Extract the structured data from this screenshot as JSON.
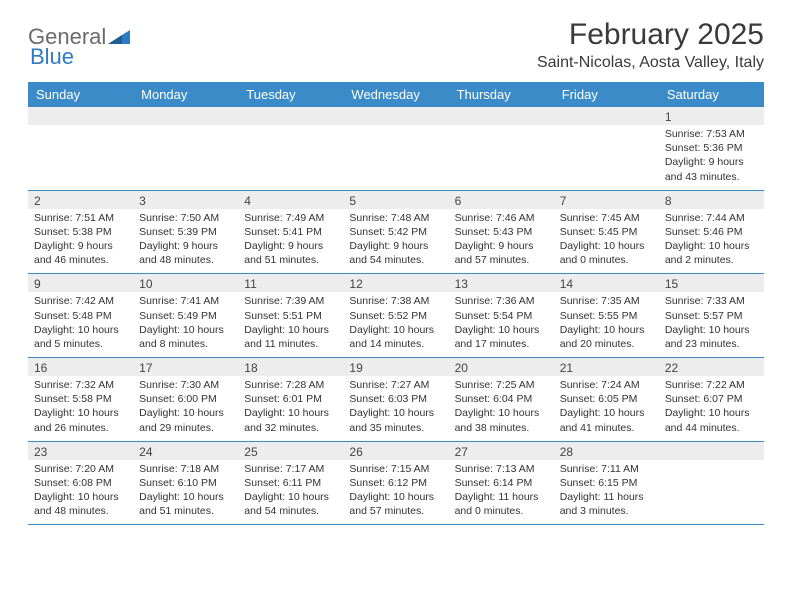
{
  "brand": {
    "part1": "General",
    "part2": "Blue"
  },
  "title": "February 2025",
  "location": "Saint-Nicolas, Aosta Valley, Italy",
  "colors": {
    "header_bar": "#3b8bc8",
    "daynum_bg": "#ededed",
    "text": "#333333",
    "logo_blue": "#2f7bbf",
    "logo_gray": "#6b6b6b"
  },
  "day_names": [
    "Sunday",
    "Monday",
    "Tuesday",
    "Wednesday",
    "Thursday",
    "Friday",
    "Saturday"
  ],
  "weeks": [
    [
      {
        "n": "",
        "sunrise": "",
        "sunset": "",
        "day": ""
      },
      {
        "n": "",
        "sunrise": "",
        "sunset": "",
        "day": ""
      },
      {
        "n": "",
        "sunrise": "",
        "sunset": "",
        "day": ""
      },
      {
        "n": "",
        "sunrise": "",
        "sunset": "",
        "day": ""
      },
      {
        "n": "",
        "sunrise": "",
        "sunset": "",
        "day": ""
      },
      {
        "n": "",
        "sunrise": "",
        "sunset": "",
        "day": ""
      },
      {
        "n": "1",
        "sunrise": "Sunrise: 7:53 AM",
        "sunset": "Sunset: 5:36 PM",
        "day": "Daylight: 9 hours and 43 minutes."
      }
    ],
    [
      {
        "n": "2",
        "sunrise": "Sunrise: 7:51 AM",
        "sunset": "Sunset: 5:38 PM",
        "day": "Daylight: 9 hours and 46 minutes."
      },
      {
        "n": "3",
        "sunrise": "Sunrise: 7:50 AM",
        "sunset": "Sunset: 5:39 PM",
        "day": "Daylight: 9 hours and 48 minutes."
      },
      {
        "n": "4",
        "sunrise": "Sunrise: 7:49 AM",
        "sunset": "Sunset: 5:41 PM",
        "day": "Daylight: 9 hours and 51 minutes."
      },
      {
        "n": "5",
        "sunrise": "Sunrise: 7:48 AM",
        "sunset": "Sunset: 5:42 PM",
        "day": "Daylight: 9 hours and 54 minutes."
      },
      {
        "n": "6",
        "sunrise": "Sunrise: 7:46 AM",
        "sunset": "Sunset: 5:43 PM",
        "day": "Daylight: 9 hours and 57 minutes."
      },
      {
        "n": "7",
        "sunrise": "Sunrise: 7:45 AM",
        "sunset": "Sunset: 5:45 PM",
        "day": "Daylight: 10 hours and 0 minutes."
      },
      {
        "n": "8",
        "sunrise": "Sunrise: 7:44 AM",
        "sunset": "Sunset: 5:46 PM",
        "day": "Daylight: 10 hours and 2 minutes."
      }
    ],
    [
      {
        "n": "9",
        "sunrise": "Sunrise: 7:42 AM",
        "sunset": "Sunset: 5:48 PM",
        "day": "Daylight: 10 hours and 5 minutes."
      },
      {
        "n": "10",
        "sunrise": "Sunrise: 7:41 AM",
        "sunset": "Sunset: 5:49 PM",
        "day": "Daylight: 10 hours and 8 minutes."
      },
      {
        "n": "11",
        "sunrise": "Sunrise: 7:39 AM",
        "sunset": "Sunset: 5:51 PM",
        "day": "Daylight: 10 hours and 11 minutes."
      },
      {
        "n": "12",
        "sunrise": "Sunrise: 7:38 AM",
        "sunset": "Sunset: 5:52 PM",
        "day": "Daylight: 10 hours and 14 minutes."
      },
      {
        "n": "13",
        "sunrise": "Sunrise: 7:36 AM",
        "sunset": "Sunset: 5:54 PM",
        "day": "Daylight: 10 hours and 17 minutes."
      },
      {
        "n": "14",
        "sunrise": "Sunrise: 7:35 AM",
        "sunset": "Sunset: 5:55 PM",
        "day": "Daylight: 10 hours and 20 minutes."
      },
      {
        "n": "15",
        "sunrise": "Sunrise: 7:33 AM",
        "sunset": "Sunset: 5:57 PM",
        "day": "Daylight: 10 hours and 23 minutes."
      }
    ],
    [
      {
        "n": "16",
        "sunrise": "Sunrise: 7:32 AM",
        "sunset": "Sunset: 5:58 PM",
        "day": "Daylight: 10 hours and 26 minutes."
      },
      {
        "n": "17",
        "sunrise": "Sunrise: 7:30 AM",
        "sunset": "Sunset: 6:00 PM",
        "day": "Daylight: 10 hours and 29 minutes."
      },
      {
        "n": "18",
        "sunrise": "Sunrise: 7:28 AM",
        "sunset": "Sunset: 6:01 PM",
        "day": "Daylight: 10 hours and 32 minutes."
      },
      {
        "n": "19",
        "sunrise": "Sunrise: 7:27 AM",
        "sunset": "Sunset: 6:03 PM",
        "day": "Daylight: 10 hours and 35 minutes."
      },
      {
        "n": "20",
        "sunrise": "Sunrise: 7:25 AM",
        "sunset": "Sunset: 6:04 PM",
        "day": "Daylight: 10 hours and 38 minutes."
      },
      {
        "n": "21",
        "sunrise": "Sunrise: 7:24 AM",
        "sunset": "Sunset: 6:05 PM",
        "day": "Daylight: 10 hours and 41 minutes."
      },
      {
        "n": "22",
        "sunrise": "Sunrise: 7:22 AM",
        "sunset": "Sunset: 6:07 PM",
        "day": "Daylight: 10 hours and 44 minutes."
      }
    ],
    [
      {
        "n": "23",
        "sunrise": "Sunrise: 7:20 AM",
        "sunset": "Sunset: 6:08 PM",
        "day": "Daylight: 10 hours and 48 minutes."
      },
      {
        "n": "24",
        "sunrise": "Sunrise: 7:18 AM",
        "sunset": "Sunset: 6:10 PM",
        "day": "Daylight: 10 hours and 51 minutes."
      },
      {
        "n": "25",
        "sunrise": "Sunrise: 7:17 AM",
        "sunset": "Sunset: 6:11 PM",
        "day": "Daylight: 10 hours and 54 minutes."
      },
      {
        "n": "26",
        "sunrise": "Sunrise: 7:15 AM",
        "sunset": "Sunset: 6:12 PM",
        "day": "Daylight: 10 hours and 57 minutes."
      },
      {
        "n": "27",
        "sunrise": "Sunrise: 7:13 AM",
        "sunset": "Sunset: 6:14 PM",
        "day": "Daylight: 11 hours and 0 minutes."
      },
      {
        "n": "28",
        "sunrise": "Sunrise: 7:11 AM",
        "sunset": "Sunset: 6:15 PM",
        "day": "Daylight: 11 hours and 3 minutes."
      },
      {
        "n": "",
        "sunrise": "",
        "sunset": "",
        "day": ""
      }
    ]
  ]
}
